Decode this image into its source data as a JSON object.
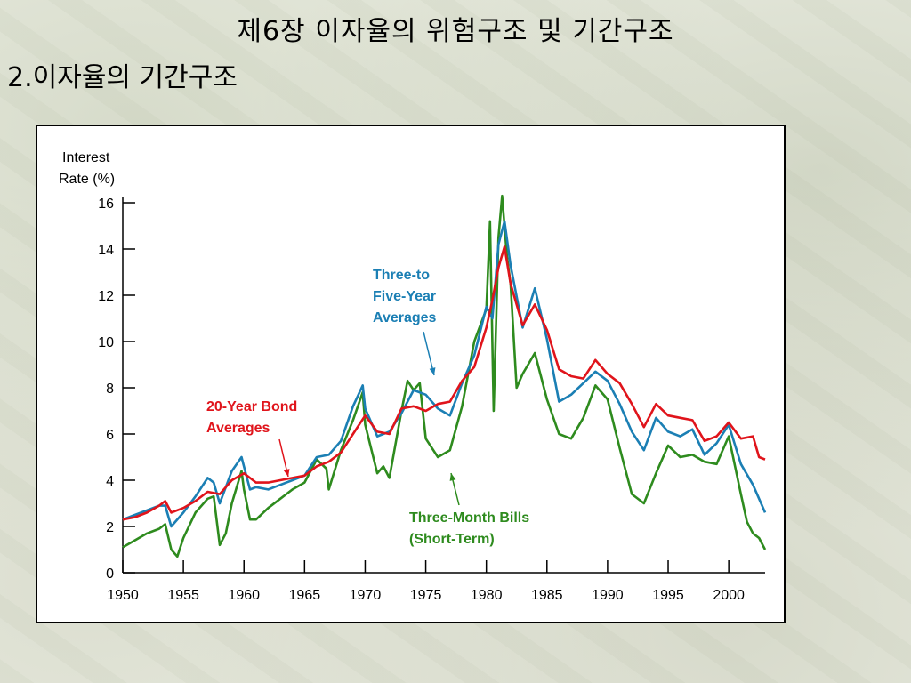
{
  "slide": {
    "title": "제6장 이자율의 위험구조 및 기간구조",
    "subtitle": "2.이자율의 기간구조"
  },
  "colors": {
    "bills": "#2e8b1e",
    "mid": "#1b7fb4",
    "bond": "#e0141b"
  },
  "chart_data": {
    "type": "line",
    "ylabel_lines": [
      "Interest",
      "Rate (%)"
    ],
    "xlim": [
      1950,
      2003
    ],
    "ylim": [
      0,
      16
    ],
    "x_ticks": [
      1950,
      1955,
      1960,
      1965,
      1970,
      1975,
      1980,
      1985,
      1990,
      1995,
      2000
    ],
    "y_ticks": [
      0,
      2,
      4,
      6,
      8,
      10,
      12,
      14,
      16
    ],
    "grid": false,
    "annotations": [
      {
        "series": "bond",
        "lines": [
          "20-Year Bond",
          "Averages"
        ]
      },
      {
        "series": "mid",
        "lines": [
          "Three-to",
          "Five-Year",
          "Averages"
        ]
      },
      {
        "series": "bills",
        "lines": [
          "Three-Month Bills",
          "(Short-Term)"
        ]
      }
    ],
    "series": [
      {
        "id": "bills",
        "color": "#2e8b1e",
        "x": [
          1950,
          1951,
          1952,
          1953,
          1953.5,
          1954,
          1954.5,
          1955,
          1956,
          1957,
          1957.5,
          1958,
          1958.5,
          1959,
          1959.8,
          1960,
          1960.5,
          1961,
          1962,
          1963,
          1964,
          1965,
          1966,
          1966.8,
          1967,
          1968,
          1969,
          1969.8,
          1970,
          1971,
          1971.5,
          1972,
          1973,
          1973.5,
          1974,
          1974.5,
          1975,
          1976,
          1977,
          1978,
          1979,
          1980,
          1980.3,
          1980.6,
          1981,
          1981.3,
          1981.7,
          1982,
          1982.5,
          1983,
          1984,
          1985,
          1986,
          1987,
          1988,
          1989,
          1990,
          1991,
          1992,
          1993,
          1994,
          1995,
          1996,
          1997,
          1998,
          1999,
          2000,
          2001,
          2001.5,
          2002,
          2002.5,
          2003
        ],
        "y": [
          1.1,
          1.4,
          1.7,
          1.9,
          2.1,
          1.0,
          0.7,
          1.5,
          2.6,
          3.2,
          3.3,
          1.2,
          1.7,
          3.0,
          4.4,
          3.6,
          2.3,
          2.3,
          2.8,
          3.2,
          3.6,
          3.9,
          4.9,
          4.5,
          3.6,
          5.3,
          6.6,
          7.8,
          6.4,
          4.3,
          4.6,
          4.1,
          7.0,
          8.3,
          7.9,
          8.2,
          5.8,
          5.0,
          5.3,
          7.2,
          10.0,
          11.4,
          15.2,
          7.0,
          14.5,
          16.3,
          13.7,
          12.5,
          8.0,
          8.6,
          9.5,
          7.5,
          6.0,
          5.8,
          6.7,
          8.1,
          7.5,
          5.4,
          3.4,
          3.0,
          4.3,
          5.5,
          5.0,
          5.1,
          4.8,
          4.7,
          5.9,
          3.4,
          2.2,
          1.7,
          1.5,
          1.0
        ]
      },
      {
        "id": "mid",
        "color": "#1b7fb4",
        "x": [
          1950,
          1951,
          1952,
          1953,
          1953.5,
          1954,
          1955,
          1956,
          1957,
          1957.5,
          1958,
          1959,
          1959.8,
          1960,
          1960.5,
          1961,
          1962,
          1963,
          1964,
          1965,
          1966,
          1967,
          1968,
          1969,
          1969.8,
          1970,
          1971,
          1972,
          1973,
          1974,
          1975,
          1976,
          1977,
          1978,
          1979,
          1980,
          1980.5,
          1981,
          1981.5,
          1982,
          1983,
          1984,
          1985,
          1986,
          1987,
          1988,
          1989,
          1990,
          1991,
          1992,
          1993,
          1994,
          1995,
          1996,
          1997,
          1998,
          1999,
          2000,
          2001,
          2002,
          2003
        ],
        "y": [
          2.3,
          2.5,
          2.7,
          2.9,
          2.9,
          2.0,
          2.6,
          3.3,
          4.1,
          3.9,
          3.0,
          4.4,
          5.0,
          4.6,
          3.6,
          3.7,
          3.6,
          3.8,
          4.0,
          4.2,
          5.0,
          5.1,
          5.7,
          7.2,
          8.1,
          7.1,
          5.9,
          6.1,
          6.9,
          7.9,
          7.7,
          7.1,
          6.8,
          8.2,
          9.4,
          11.5,
          11.0,
          14.2,
          15.2,
          13.3,
          10.6,
          12.3,
          10.1,
          7.4,
          7.7,
          8.2,
          8.7,
          8.3,
          7.3,
          6.1,
          5.3,
          6.7,
          6.1,
          5.9,
          6.2,
          5.1,
          5.6,
          6.4,
          4.7,
          3.8,
          2.6
        ]
      },
      {
        "id": "bond",
        "color": "#e0141b",
        "x": [
          1950,
          1951,
          1952,
          1953,
          1953.5,
          1954,
          1955,
          1956,
          1957,
          1958,
          1959,
          1960,
          1961,
          1962,
          1963,
          1964,
          1965,
          1966,
          1967,
          1968,
          1969,
          1970,
          1971,
          1972,
          1973,
          1974,
          1975,
          1976,
          1977,
          1978,
          1979,
          1980,
          1980.5,
          1981,
          1981.5,
          1982,
          1983,
          1984,
          1985,
          1986,
          1987,
          1988,
          1989,
          1990,
          1991,
          1992,
          1993,
          1994,
          1995,
          1996,
          1997,
          1998,
          1999,
          2000,
          2001,
          2002,
          2002.5,
          2003
        ],
        "y": [
          2.3,
          2.4,
          2.6,
          2.9,
          3.1,
          2.6,
          2.8,
          3.1,
          3.5,
          3.4,
          4.0,
          4.3,
          3.9,
          3.9,
          4.0,
          4.1,
          4.2,
          4.6,
          4.8,
          5.2,
          6.0,
          6.8,
          6.1,
          6.0,
          7.1,
          7.2,
          7.0,
          7.3,
          7.4,
          8.3,
          8.9,
          10.6,
          11.8,
          13.2,
          14.1,
          12.5,
          10.7,
          11.6,
          10.5,
          8.8,
          8.5,
          8.4,
          9.2,
          8.6,
          8.2,
          7.3,
          6.3,
          7.3,
          6.8,
          6.7,
          6.6,
          5.7,
          5.9,
          6.5,
          5.8,
          5.9,
          5.0,
          4.9
        ]
      }
    ]
  }
}
